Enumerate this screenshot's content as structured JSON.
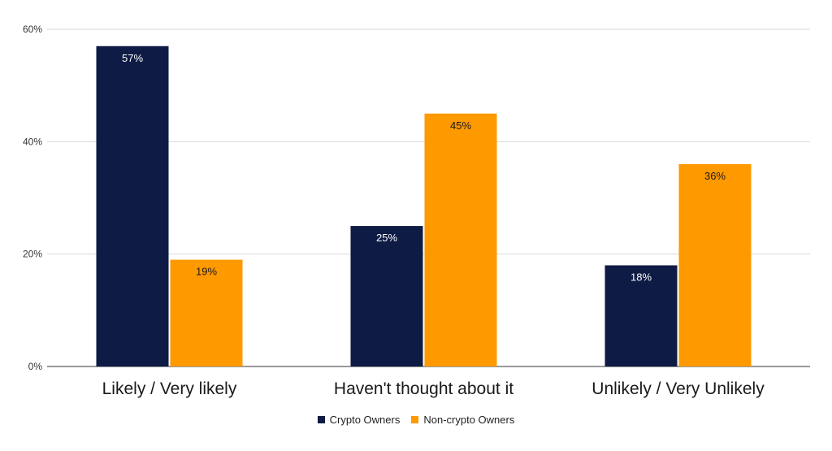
{
  "chart_data": {
    "type": "bar",
    "categories": [
      "Likely / Very likely",
      "Haven't thought about it",
      "Unlikely / Very Unlikely"
    ],
    "series": [
      {
        "name": "Crypto Owners",
        "values": [
          57,
          25,
          18
        ],
        "labels": [
          "57%",
          "25%",
          "18%"
        ],
        "color": "#0e1b45"
      },
      {
        "name": "Non-crypto Owners",
        "values": [
          19,
          45,
          36
        ],
        "labels": [
          "19%",
          "45%",
          "36%"
        ],
        "color": "#ff9900"
      }
    ],
    "yticks": [
      0,
      20,
      40,
      60
    ],
    "ytick_labels": [
      "0%",
      "20%",
      "40%",
      "60%"
    ],
    "ylim": [
      0,
      60
    ],
    "grid": true,
    "legend_position": "bottom"
  }
}
